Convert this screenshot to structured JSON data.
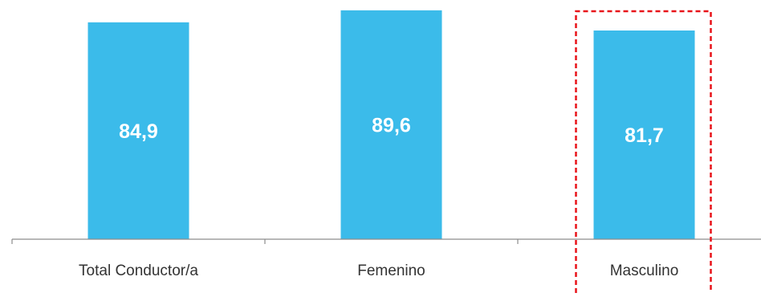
{
  "chart_data": {
    "type": "bar",
    "categories": [
      "Total Conductor/a",
      "Femenino",
      "Masculino"
    ],
    "values": [
      84.9,
      89.6,
      81.7
    ],
    "data_labels": [
      "84,9",
      "89,6",
      "81,7"
    ],
    "title": "",
    "xlabel": "",
    "ylabel": "",
    "ylim": [
      0,
      90.5
    ],
    "grid": false,
    "legend": "none",
    "bar_color": "#3bbbea",
    "label_color": "#ffffff",
    "highlight": {
      "category": "Masculino",
      "style": "dashed-box",
      "color": "#e8141a"
    },
    "axis_color": "#8c8c8c",
    "tick_label_color": "#333333"
  }
}
